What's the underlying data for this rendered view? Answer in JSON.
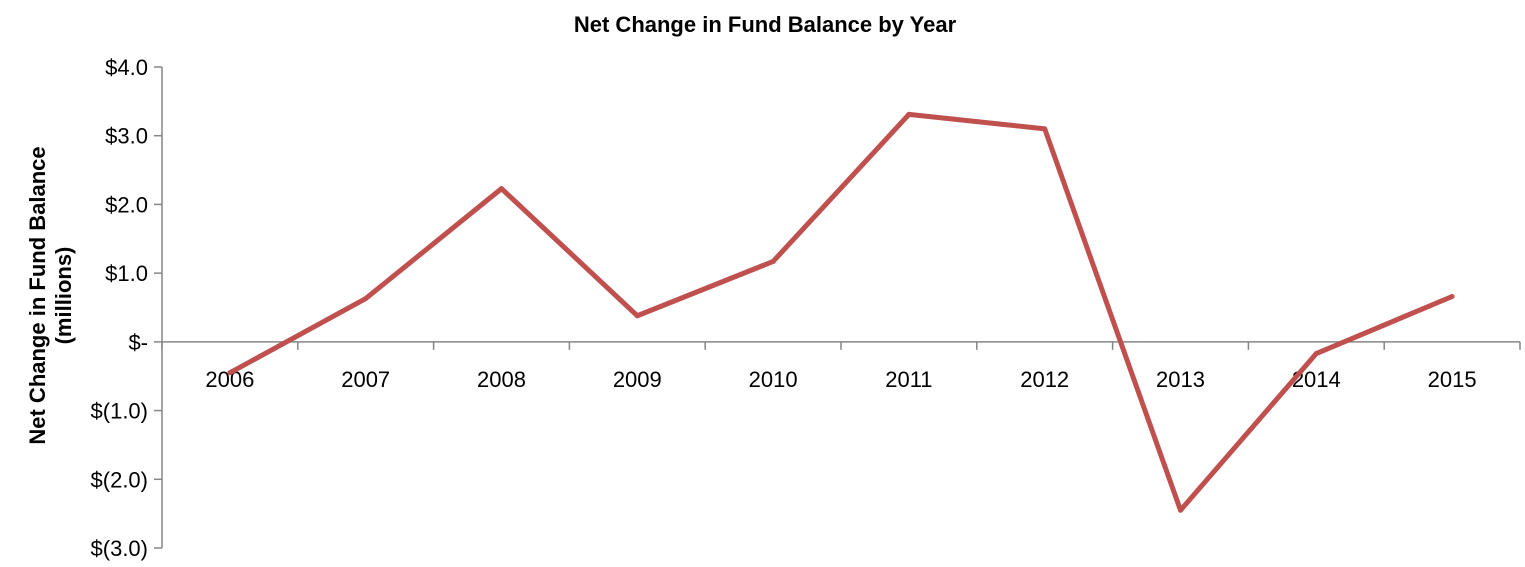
{
  "chart_data": {
    "type": "line",
    "title": "Net Change in Fund Balance by Year",
    "xlabel": "",
    "ylabel_line1": "Net Change in Fund Balance",
    "ylabel_line2": "(millions)",
    "categories": [
      "2006",
      "2007",
      "2008",
      "2009",
      "2010",
      "2011",
      "2012",
      "2013",
      "2014",
      "2015"
    ],
    "series": [
      {
        "values": [
          -0.45,
          0.63,
          2.23,
          0.38,
          1.17,
          3.31,
          3.1,
          -2.45,
          -0.17,
          0.66
        ],
        "color": "#C0504D"
      }
    ],
    "ylim": [
      -3.0,
      4.0
    ],
    "yticks": [
      4.0,
      3.0,
      2.0,
      1.0,
      0.0,
      -1.0,
      -2.0,
      -3.0
    ],
    "ytick_labels": [
      "$4.0",
      "$3.0",
      "$2.0",
      "$1.0",
      "$-",
      "$(1.0)",
      "$(2.0)",
      "$(3.0)"
    ],
    "grid": false,
    "legend": "none",
    "axis_color": "#868686"
  }
}
